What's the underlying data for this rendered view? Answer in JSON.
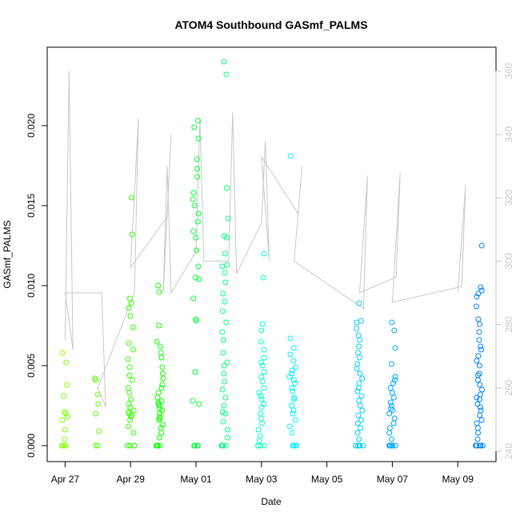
{
  "chart_data": {
    "type": "scatter",
    "title": "ATOM4 Southbound GASmf_PALMS",
    "xlabel": "Date",
    "ylabel": "GASmf_PALMS",
    "x_ticks": [
      "Apr 27",
      "Apr 29",
      "May 01",
      "May 03",
      "May 05",
      "May 07",
      "May 09"
    ],
    "y_ticks": [
      "0.000",
      "0.005",
      "0.010",
      "0.015",
      "0.020"
    ],
    "y2_ticks": [
      "240",
      "260",
      "280",
      "300",
      "320",
      "340",
      "360"
    ],
    "xlim": [
      "2017-04-26",
      "2017-05-10"
    ],
    "ylim": [
      0,
      0.0245
    ],
    "y2lim": [
      237,
      364
    ],
    "grid": false,
    "point_color_gradient": [
      "#7fff00",
      "#00ff00",
      "#00ffff",
      "#0080ff"
    ],
    "line_color": "#c8c8c8",
    "series": [
      {
        "kind": "points",
        "role": "GASmf_PALMS",
        "clusters": [
          {
            "day": "2017-04-27",
            "values": [
              0,
              0,
              0,
              0,
              0.0004,
              0.001,
              0.0016,
              0.0018,
              0.002,
              0.0021,
              0.0031,
              0.0038,
              0.0052,
              0.0058
            ]
          },
          {
            "day": "2017-04-28",
            "values": [
              0,
              0,
              0.0009,
              0.002,
              0.0026,
              0.0032,
              0.0041,
              0.0042
            ]
          },
          {
            "day": "2017-04-29",
            "values": [
              0,
              0,
              0,
              0,
              0.0008,
              0.0012,
              0.0016,
              0.0018,
              0.0019,
              0.002,
              0.0021,
              0.0022,
              0.0024,
              0.0026,
              0.0029,
              0.0033,
              0.0036,
              0.0041,
              0.0044,
              0.0049,
              0.0054,
              0.006,
              0.0064,
              0.0074,
              0.0081,
              0.0086,
              0.0089,
              0.0092,
              0.0132,
              0.0155
            ]
          },
          {
            "day": "2017-04-29-b",
            "values": [
              0,
              0,
              0,
              0,
              0,
              0.0005,
              0.0008,
              0.0011,
              0.0013,
              0.0016,
              0.0017,
              0.0018,
              0.002,
              0.0022,
              0.0023,
              0.0025,
              0.0026,
              0.0027,
              0.0028,
              0.003,
              0.0033,
              0.0036,
              0.0038,
              0.0042,
              0.0045,
              0.0049,
              0.0055,
              0.0058,
              0.0062,
              0.0065,
              0.0075,
              0.0096,
              0.01
            ]
          },
          {
            "day": "2017-05-01",
            "values": [
              0,
              0,
              0,
              0,
              0.0026,
              0.0028,
              0.0046,
              0.0078,
              0.0079,
              0.0092,
              0.0104,
              0.0105,
              0.0112,
              0.0122,
              0.013,
              0.0134,
              0.014,
              0.0145,
              0.015,
              0.0154,
              0.0158,
              0.0168,
              0.0173,
              0.0179,
              0.0192,
              0.0199,
              0.0203
            ]
          },
          {
            "day": "2017-05-02",
            "values": [
              0,
              0,
              0,
              0,
              0,
              0.0005,
              0.001,
              0.0015,
              0.002,
              0.0021,
              0.0025,
              0.003,
              0.0035,
              0.004,
              0.0045,
              0.005,
              0.0052,
              0.0058,
              0.0066,
              0.0071,
              0.0077,
              0.0084,
              0.009,
              0.0095,
              0.0102,
              0.0108,
              0.0112,
              0.0113,
              0.012,
              0.013,
              0.0131,
              0.0142,
              0.0161,
              0.0232,
              0.024
            ]
          },
          {
            "day": "2017-05-03",
            "values": [
              0,
              0,
              0,
              0,
              0,
              0.0003,
              0.0006,
              0.001,
              0.0014,
              0.0017,
              0.002,
              0.0024,
              0.0026,
              0.0029,
              0.0031,
              0.0033,
              0.0036,
              0.004,
              0.0043,
              0.0046,
              0.005,
              0.0052,
              0.0055,
              0.006,
              0.0065,
              0.0072,
              0.0076,
              0.0105,
              0.012
            ]
          },
          {
            "day": "2017-05-04",
            "values": [
              0,
              0,
              0,
              0,
              0.0008,
              0.0012,
              0.0016,
              0.002,
              0.0022,
              0.0025,
              0.0029,
              0.003,
              0.0034,
              0.0036,
              0.0039,
              0.0041,
              0.0043,
              0.0045,
              0.0047,
              0.0049,
              0.0053,
              0.0057,
              0.0061,
              0.0067,
              0.0181
            ]
          },
          {
            "day": "2017-05-06",
            "values": [
              0,
              0,
              0,
              0,
              0,
              0,
              0.0004,
              0.0008,
              0.0011,
              0.0014,
              0.0016,
              0.0019,
              0.0022,
              0.0025,
              0.0028,
              0.0031,
              0.0034,
              0.0036,
              0.0039,
              0.0042,
              0.0045,
              0.0048,
              0.0051,
              0.0055,
              0.0058,
              0.0062,
              0.0066,
              0.0069,
              0.0073,
              0.0077,
              0.0078,
              0.0089
            ]
          },
          {
            "day": "2017-05-07",
            "values": [
              0,
              0,
              0,
              0,
              0,
              0.0004,
              0.0008,
              0.0011,
              0.0014,
              0.0017,
              0.002,
              0.0022,
              0.0023,
              0.0025,
              0.0027,
              0.003,
              0.0033,
              0.0036,
              0.0039,
              0.0041,
              0.0043,
              0.0051,
              0.0061,
              0.0072,
              0.0077
            ]
          },
          {
            "day": "2017-05-09",
            "values": [
              0,
              0,
              0,
              0,
              0,
              0,
              0.0004,
              0.0008,
              0.0011,
              0.0014,
              0.0016,
              0.0019,
              0.0022,
              0.0024,
              0.0026,
              0.0029,
              0.003,
              0.0032,
              0.0035,
              0.0038,
              0.0041,
              0.0044,
              0.0045,
              0.005,
              0.0053,
              0.0056,
              0.006,
              0.0062,
              0.0066,
              0.0071,
              0.0076,
              0.0079,
              0.0087,
              0.0093,
              0.0095,
              0.0097,
              0.0099,
              0.0125
            ]
          }
        ]
      },
      {
        "kind": "line",
        "role": "right-axis trace",
        "path": [
          [
            "2017-04-27",
            275
          ],
          [
            "2017-04-27",
            360
          ],
          [
            "2017-04-27",
            272
          ],
          [
            "2017-04-27",
            290
          ],
          [
            "2017-04-28",
            290
          ],
          [
            "2017-04-28",
            254
          ],
          [
            "2017-04-28",
            260
          ],
          [
            "2017-04-29",
            290
          ],
          [
            "2017-04-29",
            345
          ],
          [
            "2017-04-29",
            298
          ],
          [
            "2017-04-30",
            314
          ],
          [
            "2017-04-30",
            340
          ],
          [
            "2017-04-30",
            290
          ],
          [
            "2017-04-30",
            330
          ],
          [
            "2017-04-30",
            290
          ],
          [
            "2017-05-01",
            303
          ],
          [
            "2017-05-01",
            345
          ],
          [
            "2017-05-01",
            300
          ],
          [
            "2017-05-02",
            300
          ],
          [
            "2017-05-02",
            347
          ],
          [
            "2017-05-02",
            296
          ],
          [
            "2017-05-03",
            312
          ],
          [
            "2017-05-03",
            338
          ],
          [
            "2017-05-03",
            300
          ],
          [
            "2017-05-03",
            333
          ],
          [
            "2017-05-04",
            315
          ],
          [
            "2017-05-04",
            330
          ],
          [
            "2017-05-04",
            300
          ],
          [
            "2017-05-06",
            285
          ],
          [
            "2017-05-06",
            327
          ],
          [
            "2017-05-06",
            290
          ],
          [
            "2017-05-07",
            295
          ],
          [
            "2017-05-07",
            328
          ],
          [
            "2017-05-07",
            287
          ],
          [
            "2017-05-09",
            292
          ],
          [
            "2017-05-09",
            324
          ],
          [
            "2017-05-09",
            290
          ]
        ]
      }
    ]
  }
}
